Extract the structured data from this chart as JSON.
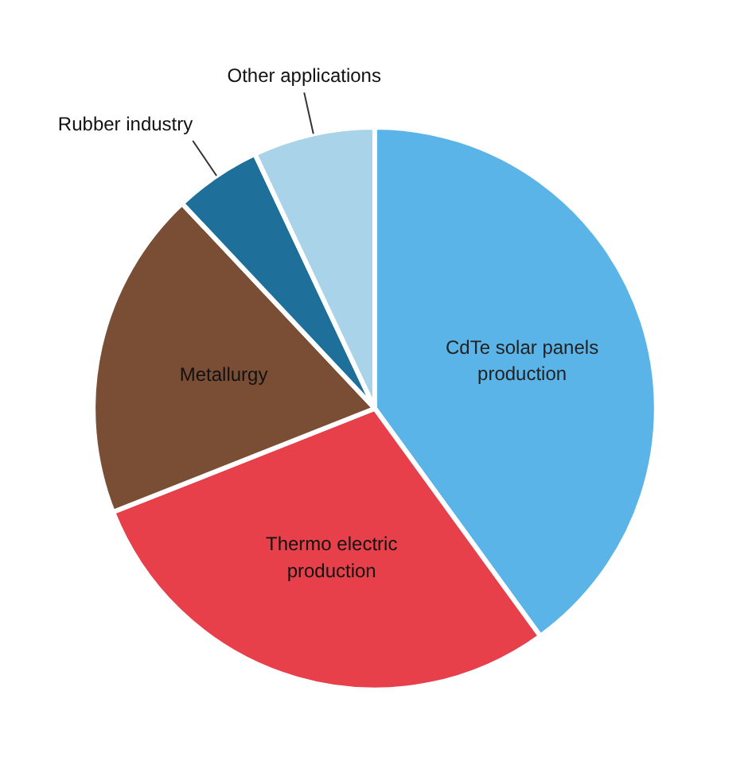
{
  "chart_data": {
    "type": "pie",
    "categories": [
      "CdTe solar panels production",
      "Thermo electric production",
      "Metallurgy",
      "Rubber industry",
      "Other applications"
    ],
    "values": [
      40,
      29,
      19,
      5,
      7
    ],
    "colors": [
      "#5ab4e8",
      "#e8404a",
      "#7a4e35",
      "#1e6f99",
      "#a9d3e8"
    ]
  }
}
